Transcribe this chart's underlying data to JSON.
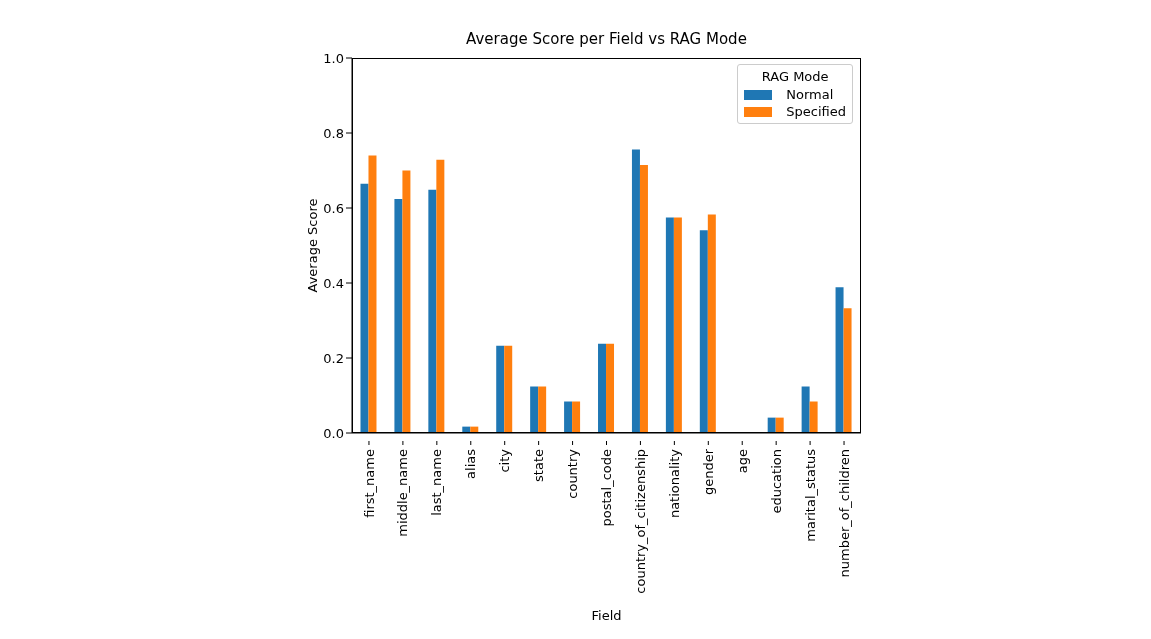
{
  "chart_data": {
    "type": "bar",
    "title": "Average Score per Field vs RAG Mode",
    "xlabel": "Field",
    "ylabel": "Average Score",
    "legend_title": "RAG Mode",
    "categories": [
      "first_name",
      "middle_name",
      "last_name",
      "alias",
      "city",
      "state",
      "country",
      "postal_code",
      "country_of_citizenship",
      "nationality",
      "gender",
      "age",
      "education",
      "marital_status",
      "number_of_children"
    ],
    "series": [
      {
        "name": "Normal",
        "color": "#1f77b4",
        "values": [
          0.665,
          0.624,
          0.649,
          0.017,
          0.233,
          0.124,
          0.084,
          0.238,
          0.756,
          0.575,
          0.541,
          0,
          0.041,
          0.124,
          0.389
        ]
      },
      {
        "name": "Specified",
        "color": "#ff7f0e",
        "values": [
          0.74,
          0.7,
          0.729,
          0.017,
          0.233,
          0.124,
          0.084,
          0.238,
          0.715,
          0.575,
          0.583,
          0,
          0.041,
          0.084,
          0.333
        ]
      }
    ],
    "ylim": [
      0,
      1.0
    ],
    "yticks": [
      {
        "value": 0,
        "label": "0.0"
      },
      0.2,
      0.4,
      0.6,
      0.8,
      {
        "value": 1,
        "label": "1.0"
      }
    ],
    "legend": "top right",
    "grid": false
  }
}
